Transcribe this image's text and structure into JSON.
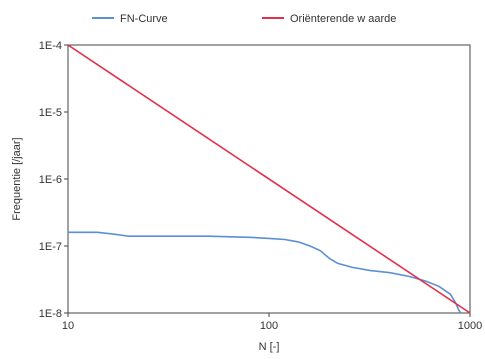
{
  "chart_data": {
    "type": "line",
    "xscale": "log",
    "yscale": "log",
    "xlabel": "N [-]",
    "ylabel": "Frequentie [/jaar]",
    "xlim": [
      10,
      1000
    ],
    "ylim": [
      1e-08,
      0.0001
    ],
    "x_ticks": [
      10,
      100,
      1000
    ],
    "x_tick_labels": [
      "10",
      "100",
      "1000"
    ],
    "y_ticks": [
      0.0001,
      1e-05,
      1e-06,
      1e-07,
      1e-08
    ],
    "y_tick_labels": [
      "1E-4",
      "1E-5",
      "1E-6",
      "1E-7",
      "1E-8"
    ],
    "grid": false,
    "legend_position": "top",
    "series": [
      {
        "name": "FN-Curve",
        "color": "#5b8fd6",
        "x": [
          10,
          14,
          17,
          20,
          30,
          50,
          80,
          100,
          120,
          140,
          160,
          180,
          200,
          220,
          260,
          320,
          400,
          500,
          600,
          700,
          800,
          850,
          880,
          900
        ],
        "y": [
          1.6e-07,
          1.6e-07,
          1.5e-07,
          1.4e-07,
          1.4e-07,
          1.4e-07,
          1.35e-07,
          1.3e-07,
          1.25e-07,
          1.15e-07,
          1e-07,
          8.5e-08,
          6.5e-08,
          5.5e-08,
          4.8e-08,
          4.3e-08,
          4e-08,
          3.5e-08,
          3e-08,
          2.5e-08,
          1.9e-08,
          1.4e-08,
          1.1e-08,
          1e-08
        ]
      },
      {
        "name": "Oriënterende w aarde",
        "color": "#e0304a",
        "x": [
          10,
          1000
        ],
        "y": [
          0.0001,
          1e-08
        ]
      }
    ]
  }
}
